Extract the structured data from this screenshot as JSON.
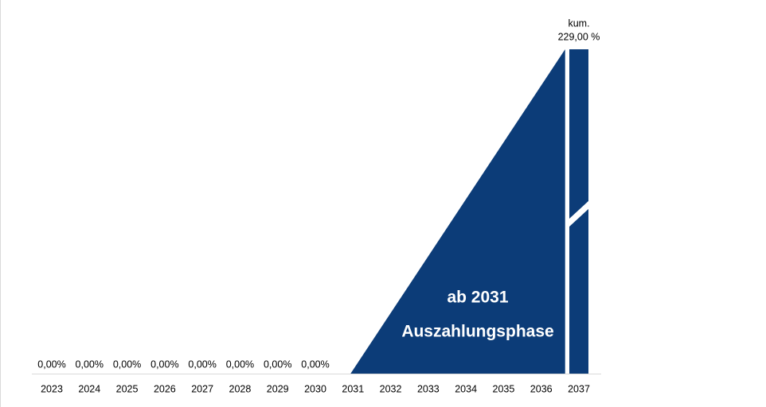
{
  "chart_data": {
    "type": "bar",
    "categories": [
      "2023",
      "2024",
      "2025",
      "2026",
      "2027",
      "2028",
      "2029",
      "2030",
      "2031",
      "2032",
      "2033",
      "2034",
      "2035",
      "2036",
      "2037"
    ],
    "values": [
      0,
      0,
      0,
      0,
      0,
      0,
      0,
      0,
      null,
      null,
      null,
      null,
      null,
      null,
      229
    ],
    "value_labels": [
      "0,00%",
      "0,00%",
      "0,00%",
      "0,00%",
      "0,00%",
      "0,00%",
      "0,00%",
      "0,00%",
      null,
      null,
      null,
      null,
      null,
      null,
      "229,00 %"
    ],
    "color": "#0c3c78",
    "axis_break": true,
    "annotations": [
      "kum.",
      "ab 2031",
      "Auszahlungsphase"
    ]
  }
}
